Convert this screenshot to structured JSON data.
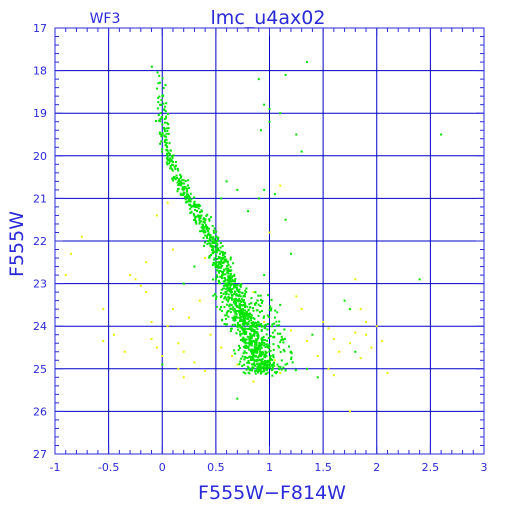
{
  "chart_data": {
    "type": "scatter",
    "title": "lmc_u4ax02",
    "corner_label": "WF3",
    "xlabel": "F555W−F814W",
    "ylabel": "F555W",
    "xlim": [
      -1,
      3
    ],
    "ylim": [
      27,
      17
    ],
    "y_inverted": true,
    "grid": true,
    "x_ticks": [
      -1,
      -0.5,
      0,
      0.5,
      1,
      1.5,
      2,
      2.5,
      3
    ],
    "x_tick_labels": [
      "-1",
      "-0.5",
      "0",
      "0.5",
      "1",
      "1.5",
      "2",
      "2.5",
      "3"
    ],
    "y_ticks": [
      17,
      18,
      19,
      20,
      21,
      22,
      23,
      24,
      25,
      26,
      27
    ],
    "y_tick_labels": [
      "17",
      "18",
      "19",
      "20",
      "21",
      "22",
      "23",
      "24",
      "25",
      "26",
      "27"
    ],
    "colors": {
      "axis": "#2a2ad8",
      "grid": "#0000c8",
      "green": "#00e400",
      "yellow": "#eeee00"
    },
    "green_ridge": [
      [
        -0.05,
        17.5
      ],
      [
        0.0,
        18.5
      ],
      [
        0.0,
        19.3
      ],
      [
        0.05,
        20.0
      ],
      [
        0.15,
        20.6
      ],
      [
        0.3,
        21.2
      ],
      [
        0.45,
        21.9
      ],
      [
        0.55,
        22.5
      ],
      [
        0.65,
        23.1
      ],
      [
        0.75,
        23.7
      ],
      [
        0.85,
        24.3
      ],
      [
        0.95,
        25.0
      ]
    ],
    "green_extra": [
      [
        0.9,
        18.2
      ],
      [
        0.95,
        18.8
      ],
      [
        1.0,
        18.9
      ],
      [
        1.0,
        19.2
      ],
      [
        0.92,
        19.4
      ],
      [
        1.1,
        19.0
      ],
      [
        1.35,
        17.8
      ],
      [
        1.15,
        18.1
      ],
      [
        1.25,
        19.5
      ],
      [
        0.95,
        20.8
      ],
      [
        0.9,
        21.0
      ],
      [
        1.05,
        20.9
      ],
      [
        1.15,
        21.5
      ],
      [
        0.55,
        21.0
      ],
      [
        0.6,
        20.6
      ],
      [
        0.7,
        20.8
      ],
      [
        0.8,
        21.3
      ],
      [
        1.3,
        19.9
      ],
      [
        1.2,
        22.3
      ],
      [
        1.7,
        23.4
      ],
      [
        1.75,
        23.6
      ],
      [
        1.8,
        24.6
      ],
      [
        2.4,
        22.9
      ],
      [
        2.6,
        19.5
      ],
      [
        1.4,
        24.2
      ],
      [
        1.45,
        25.2
      ],
      [
        1.35,
        25.0
      ],
      [
        0.7,
        25.7
      ],
      [
        0.3,
        22.6
      ],
      [
        0.2,
        23.0
      ],
      [
        0.0,
        24.9
      ],
      [
        1.05,
        24.1
      ],
      [
        1.2,
        24.6
      ],
      [
        1.1,
        23.5
      ],
      [
        0.95,
        22.8
      ]
    ],
    "yellow_points": [
      [
        -0.75,
        21.9
      ],
      [
        -0.85,
        22.3
      ],
      [
        -0.9,
        22.8
      ],
      [
        -0.55,
        23.6
      ],
      [
        -0.45,
        24.2
      ],
      [
        -0.55,
        24.35
      ],
      [
        -0.35,
        24.6
      ],
      [
        -0.3,
        22.8
      ],
      [
        -0.2,
        23.05
      ],
      [
        -0.25,
        22.9
      ],
      [
        -0.15,
        23.2
      ],
      [
        -0.15,
        22.5
      ],
      [
        -0.1,
        23.9
      ],
      [
        -0.1,
        24.3
      ],
      [
        0.0,
        24.7
      ],
      [
        -0.05,
        24.5
      ],
      [
        0.1,
        23.6
      ],
      [
        0.05,
        24.0
      ],
      [
        0.15,
        24.4
      ],
      [
        0.2,
        24.6
      ],
      [
        0.25,
        23.8
      ],
      [
        0.15,
        25.0
      ],
      [
        0.2,
        25.2
      ],
      [
        0.4,
        25.05
      ],
      [
        0.45,
        24.2
      ],
      [
        0.35,
        23.4
      ],
      [
        0.1,
        22.2
      ],
      [
        0.4,
        22.4
      ],
      [
        1.25,
        23.3
      ],
      [
        1.3,
        23.6
      ],
      [
        1.2,
        24.1
      ],
      [
        1.35,
        24.35
      ],
      [
        1.5,
        23.9
      ],
      [
        1.45,
        24.7
      ],
      [
        1.55,
        25.0
      ],
      [
        1.6,
        24.3
      ],
      [
        1.65,
        24.6
      ],
      [
        1.75,
        24.4
      ],
      [
        1.8,
        24.15
      ],
      [
        1.85,
        24.75
      ],
      [
        1.9,
        24.2
      ],
      [
        1.95,
        24.5
      ],
      [
        2.0,
        24.0
      ],
      [
        2.05,
        24.35
      ],
      [
        1.8,
        22.9
      ],
      [
        1.85,
        23.6
      ],
      [
        1.9,
        23.9
      ],
      [
        2.1,
        25.1
      ],
      [
        1.6,
        25.15
      ],
      [
        1.75,
        26.0
      ],
      [
        1.55,
        24.05
      ],
      [
        1.1,
        20.7
      ],
      [
        1.0,
        21.8
      ],
      [
        0.85,
        23.2
      ],
      [
        0.95,
        23.9
      ],
      [
        1.05,
        24.8
      ],
      [
        0.7,
        24.9
      ],
      [
        0.85,
        25.3
      ],
      [
        1.1,
        25.1
      ],
      [
        0.3,
        24.85
      ],
      [
        -0.05,
        21.4
      ],
      [
        0.05,
        21.1
      ],
      [
        0.55,
        24.5
      ],
      [
        0.65,
        24.7
      ]
    ]
  }
}
